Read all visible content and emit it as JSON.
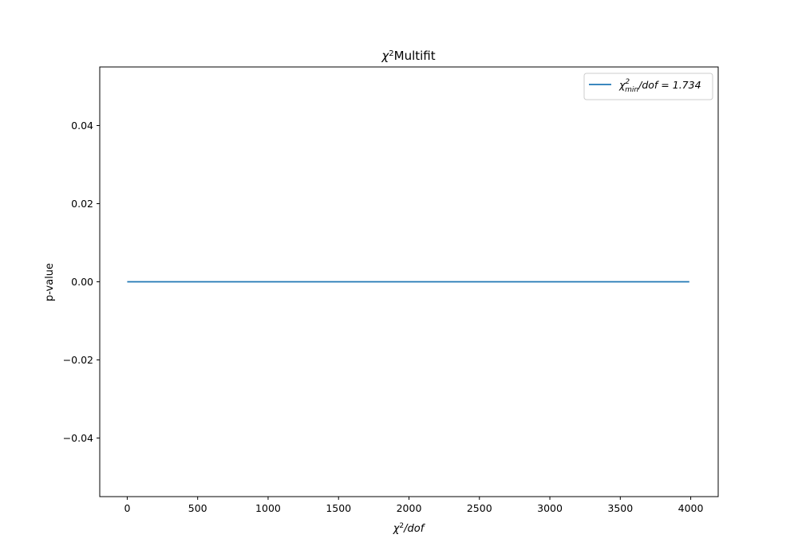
{
  "chart_data": {
    "type": "line",
    "title": {
      "symbol": "χ",
      "sup": "2",
      "text": "Multifit"
    },
    "xlabel": {
      "symbol": "χ",
      "sup": "2",
      "rest": "/dof"
    },
    "ylabel": "p-value",
    "xlim": [
      -195,
      4195
    ],
    "ylim": [
      -0.055,
      0.055
    ],
    "x_ticks": [
      0,
      500,
      1000,
      1500,
      2000,
      2500,
      3000,
      3500,
      4000
    ],
    "x_tick_labels": [
      "0",
      "500",
      "1000",
      "1500",
      "2000",
      "2500",
      "3000",
      "3500",
      "4000"
    ],
    "y_ticks": [
      -0.04,
      -0.02,
      0.0,
      0.02,
      0.04
    ],
    "y_tick_labels": [
      "−0.04",
      "−0.02",
      "0.00",
      "0.02",
      "0.04"
    ],
    "grid": false,
    "legend_position": "top-right",
    "series": [
      {
        "name": {
          "symbol": "χ",
          "sup": "2",
          "sub": "min",
          "rest": "/dof = 1.734"
        },
        "color": "#1f77b4",
        "x": [
          0,
          500,
          1000,
          1500,
          2000,
          2500,
          3000,
          3500,
          3990
        ],
        "y": [
          0,
          0,
          0,
          0,
          0,
          0,
          0,
          0,
          0
        ]
      }
    ]
  }
}
